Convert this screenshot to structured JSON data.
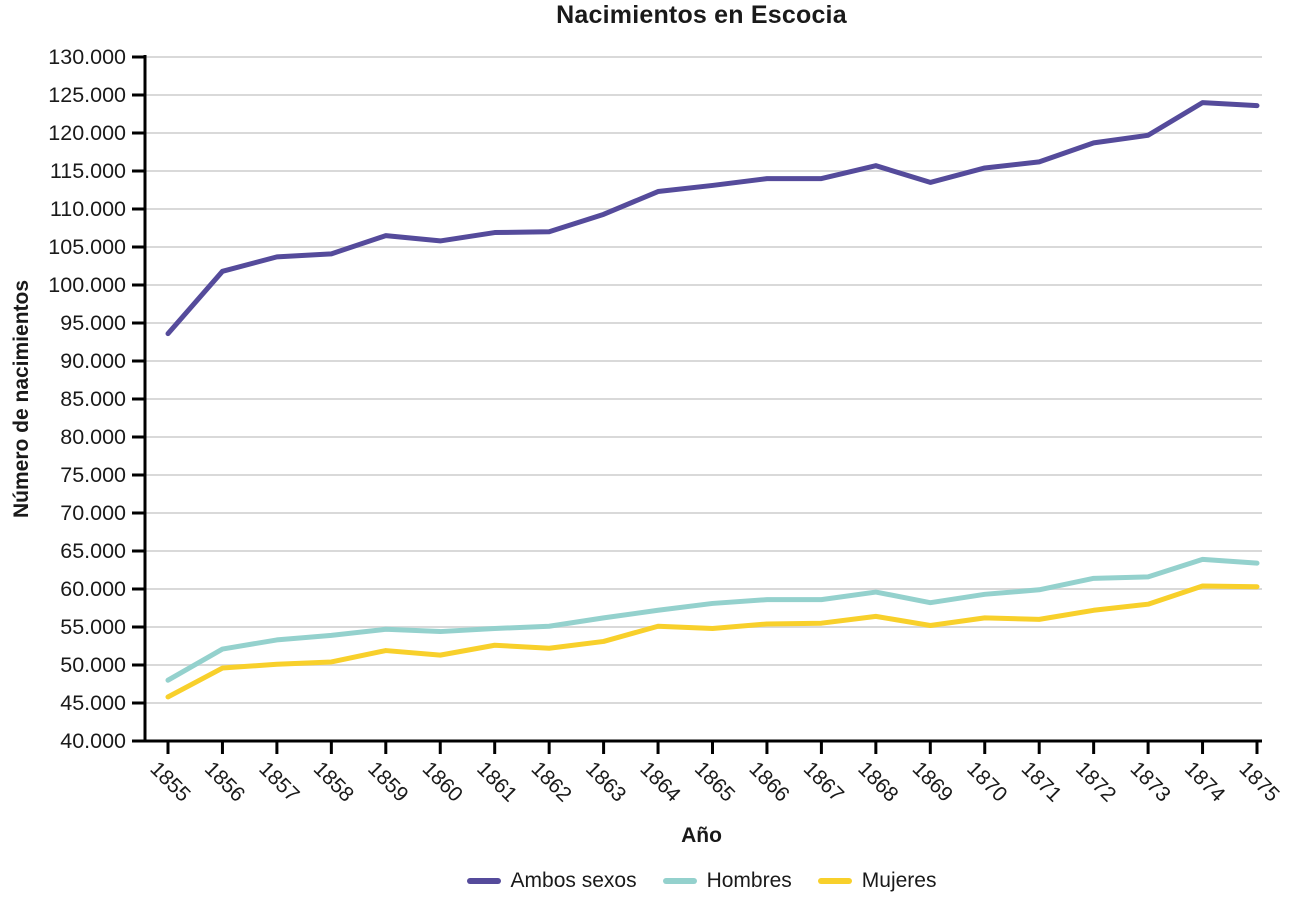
{
  "title": "Nacimientos en Escocia",
  "chart_data": {
    "type": "line",
    "title": "Nacimientos en Escocia",
    "xlabel": "Año",
    "ylabel": "Número de nacimientos",
    "x": [
      1855,
      1856,
      1857,
      1858,
      1859,
      1860,
      1861,
      1862,
      1863,
      1864,
      1865,
      1866,
      1867,
      1868,
      1869,
      1870,
      1871,
      1872,
      1873,
      1874,
      1875
    ],
    "series": [
      {
        "name": "Ambos sexos",
        "color": "#554b9b",
        "values": [
          93600,
          101800,
          103700,
          104100,
          106500,
          105800,
          106900,
          107000,
          109300,
          112300,
          113100,
          114000,
          114000,
          115700,
          113500,
          115400,
          116200,
          118700,
          119700,
          124000,
          123600
        ]
      },
      {
        "name": "Hombres",
        "color": "#94d1cd",
        "values": [
          48000,
          52100,
          53300,
          53900,
          54700,
          54400,
          54800,
          55100,
          56200,
          57200,
          58100,
          58600,
          58600,
          59600,
          58200,
          59300,
          59900,
          61400,
          61600,
          63900,
          63400
        ]
      },
      {
        "name": "Mujeres",
        "color": "#f8d02b",
        "values": [
          45800,
          49600,
          50100,
          50400,
          51900,
          51300,
          52600,
          52200,
          53100,
          55100,
          54800,
          55400,
          55500,
          56400,
          55200,
          56200,
          56000,
          57200,
          58000,
          60400,
          60300
        ]
      }
    ],
    "ylim": [
      40000,
      130000
    ],
    "ytick_step": 5000,
    "thousands_separator": ".",
    "grid": "horizontal",
    "gridline_color": "#d9d9d9",
    "axis_color": "#000000",
    "legend_position": "bottom"
  }
}
